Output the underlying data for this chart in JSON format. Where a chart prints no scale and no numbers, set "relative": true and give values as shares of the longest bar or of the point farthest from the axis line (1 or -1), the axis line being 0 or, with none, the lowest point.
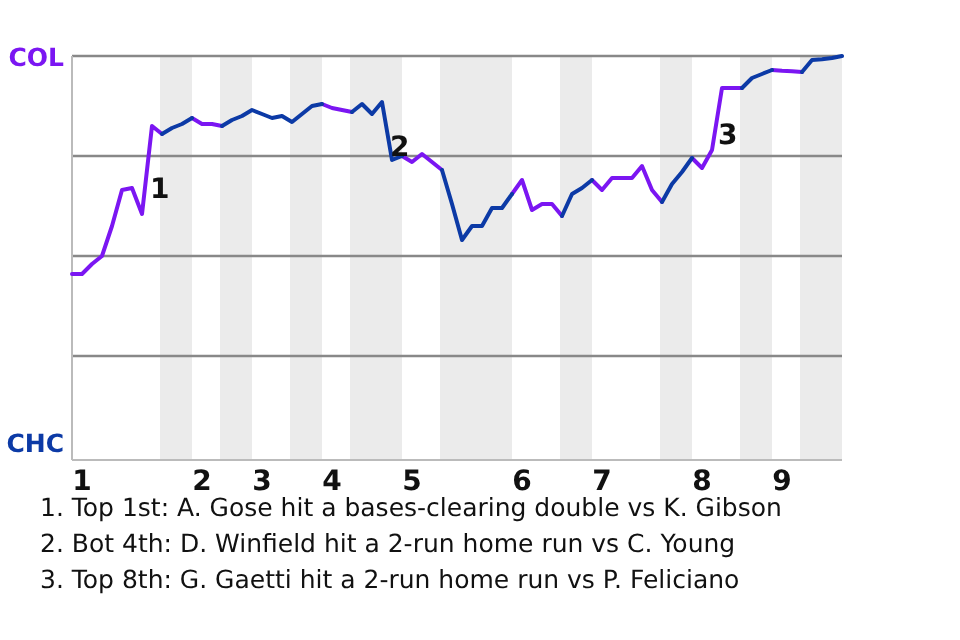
{
  "chart_data": {
    "type": "line",
    "relative": true,
    "categories": [
      null,
      "1",
      null,
      null,
      null,
      null,
      null,
      null,
      null,
      null,
      null,
      null,
      null,
      "2",
      null,
      null,
      null,
      null,
      null,
      "3",
      null,
      null,
      null,
      null,
      null,
      null,
      "4",
      null,
      null,
      null,
      null,
      null,
      null,
      null,
      "5",
      null,
      null,
      null,
      null,
      null,
      null,
      null,
      null,
      null,
      null,
      "6",
      null,
      null,
      null,
      null,
      null,
      null,
      null,
      "7",
      null,
      null,
      null,
      null,
      null,
      null,
      null,
      null,
      null,
      "8",
      null,
      null,
      null,
      null,
      null,
      null,
      null,
      "9",
      null,
      null,
      null,
      null,
      null,
      null
    ],
    "grid": "y",
    "marker": "none",
    "line_style": "solid",
    "series": [
      {
        "color": "#7b16f2",
        "values": [
          0.455,
          0.455,
          0.48,
          0.5,
          0.575,
          0.665,
          0.67,
          0.605,
          0.825,
          0.805,
          null,
          null,
          0.845,
          0.83,
          0.83,
          0.825,
          null,
          null,
          null,
          null,
          null,
          null,
          null,
          null,
          null,
          0.88,
          0.87,
          0.865,
          0.86,
          null,
          null,
          null,
          null,
          0.75,
          0.735,
          0.755,
          0.735,
          0.715,
          null,
          null,
          null,
          null,
          null,
          null,
          0.655,
          0.69,
          0.615,
          0.63,
          0.63,
          0.6,
          null,
          null,
          0.69,
          0.665,
          0.695,
          0.695,
          0.695,
          0.725,
          0.665,
          0.635,
          null,
          null,
          0.745,
          0.72,
          0.765,
          0.92,
          0.92,
          0.92,
          null,
          null,
          0.965,
          0.963,
          0.962,
          0.96,
          null,
          null,
          null,
          null
        ]
      },
      {
        "color": "#0c3aa6",
        "values": [
          null,
          null,
          null,
          null,
          null,
          null,
          null,
          null,
          null,
          0.805,
          0.82,
          0.83,
          0.845,
          null,
          null,
          0.825,
          0.84,
          0.85,
          0.865,
          0.855,
          0.845,
          0.85,
          0.835,
          0.855,
          0.875,
          0.88,
          null,
          null,
          0.86,
          0.88,
          0.855,
          0.885,
          0.74,
          0.75,
          null,
          null,
          null,
          0.715,
          0.63,
          0.54,
          0.575,
          0.575,
          0.62,
          0.62,
          0.655,
          null,
          null,
          null,
          null,
          0.6,
          0.655,
          0.67,
          0.69,
          null,
          null,
          null,
          null,
          null,
          null,
          0.635,
          0.68,
          0.71,
          0.745,
          null,
          null,
          null,
          null,
          0.92,
          0.945,
          0.955,
          0.965,
          null,
          null,
          0.96,
          0.99,
          0.992,
          0.995,
          1
        ]
      }
    ],
    "annotations": [
      "COL",
      "CHC",
      "1",
      "2",
      "3",
      "1. Top 1st: A. Gose hit a bases-clearing double vs K. Gibson",
      "2. Bot 4th: D. Winfield hit a 2-run home run vs C. Young",
      "3. Top 8th: G. Gaetti hit a 2-run home run vs P. Feliciano"
    ]
  }
}
